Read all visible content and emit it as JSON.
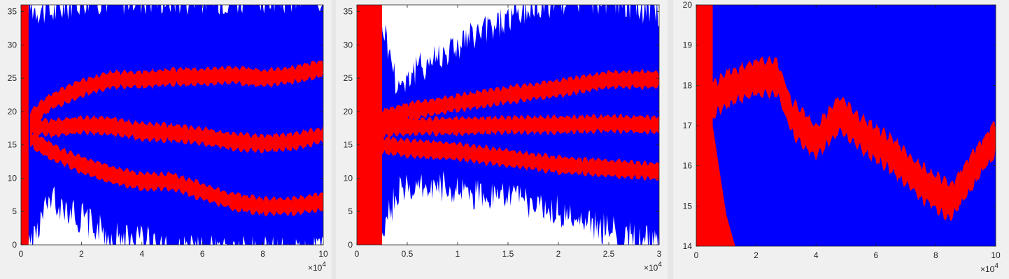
{
  "colors": {
    "band": "#0000ff",
    "trace": "#ff0000",
    "axes_bg": "#ffffff"
  },
  "chart_data": [
    {
      "type": "area",
      "title": "",
      "xlabel": "",
      "ylabel": "",
      "x_exponent_label": "×10",
      "x_exponent_power": "4",
      "xlim": [
        0,
        10
      ],
      "ylim": [
        0,
        36
      ],
      "xticks": [
        "0",
        "2",
        "4",
        "6",
        "8",
        "10"
      ],
      "yticks": [
        "0",
        "5",
        "10",
        "15",
        "20",
        "25",
        "30",
        "35"
      ],
      "grid": false,
      "legend": "none",
      "band": {
        "x": [
          0.2,
          1,
          2,
          3,
          4,
          5,
          6,
          7,
          8,
          9,
          10
        ],
        "upper": [
          35,
          34,
          36,
          36,
          36,
          36,
          36,
          36,
          36,
          36,
          36
        ],
        "lower": [
          0,
          8,
          5,
          2,
          2,
          0,
          0,
          0,
          0,
          0,
          0
        ]
      },
      "series": [
        {
          "x": [
            0.3,
            1,
            2,
            3,
            4,
            5,
            6,
            7,
            8,
            9,
            10
          ],
          "values": [
            19,
            21.5,
            23.5,
            24.8,
            24.8,
            25.2,
            25.2,
            25.5,
            25,
            25.5,
            26.5
          ]
        },
        {
          "x": [
            0.3,
            1,
            2,
            3,
            4,
            5,
            6,
            7,
            8,
            9,
            10
          ],
          "values": [
            18,
            17.5,
            18,
            17.8,
            17,
            16.8,
            16.3,
            15.5,
            15.2,
            15.5,
            16.5
          ]
        },
        {
          "x": [
            0.3,
            1,
            2,
            3,
            4,
            5,
            6,
            7,
            8,
            9,
            10
          ],
          "values": [
            16,
            14,
            12,
            10.5,
            9.5,
            9.5,
            8,
            6.5,
            5.8,
            5.8,
            6.5
          ]
        }
      ],
      "initial_transient": {
        "x_end": 0.25
      }
    },
    {
      "type": "area",
      "title": "",
      "xlabel": "",
      "ylabel": "",
      "x_exponent_label": "×10",
      "x_exponent_power": "4",
      "xlim": [
        0,
        3
      ],
      "ylim": [
        0,
        36
      ],
      "xticks": [
        "0",
        "0.5",
        "1",
        "1.5",
        "2",
        "2.5",
        "3"
      ],
      "yticks": [
        "0",
        "5",
        "10",
        "15",
        "20",
        "25",
        "30",
        "35"
      ],
      "grid": false,
      "legend": "none",
      "band": {
        "x": [
          0.2,
          0.4,
          0.75,
          1,
          1.5,
          2,
          2.5,
          3
        ],
        "upper": [
          36,
          23,
          27,
          29,
          33,
          36,
          36,
          34
        ],
        "lower": [
          0,
          9,
          10,
          9,
          8,
          6,
          3,
          1
        ]
      },
      "series": [
        {
          "x": [
            0.25,
            0.5,
            1,
            1.5,
            2,
            2.5,
            3
          ],
          "values": [
            19,
            20,
            21.3,
            22.5,
            23.5,
            24.8,
            24.8
          ]
        },
        {
          "x": [
            0.25,
            0.5,
            1,
            1.5,
            2,
            2.5,
            3
          ],
          "values": [
            17.5,
            17.8,
            17.8,
            18,
            18,
            18.2,
            18
          ]
        },
        {
          "x": [
            0.25,
            0.5,
            1,
            1.5,
            2,
            2.5,
            3
          ],
          "values": [
            15,
            14.5,
            14,
            13,
            12,
            11.5,
            11
          ]
        }
      ],
      "initial_transient": {
        "x_end": 0.25
      }
    },
    {
      "type": "area",
      "title": "",
      "xlabel": "",
      "ylabel": "",
      "x_exponent_label": "×10",
      "x_exponent_power": "4",
      "xlim": [
        0,
        10
      ],
      "ylim": [
        14,
        20
      ],
      "xticks": [
        "0",
        "2",
        "4",
        "6",
        "8",
        "10"
      ],
      "yticks": [
        "14",
        "15",
        "16",
        "17",
        "18",
        "19",
        "20"
      ],
      "grid": false,
      "legend": "none",
      "band": {
        "x": [
          0,
          10
        ],
        "upper": [
          20,
          20
        ],
        "lower": [
          14,
          14
        ]
      },
      "series": [
        {
          "x": [
            0.5,
            1,
            2,
            2.7,
            3.2,
            4,
            4.8,
            5.5,
            6.5,
            7.5,
            8.5,
            9.5,
            10
          ],
          "values": [
            17.6,
            17.9,
            18.2,
            18.2,
            17.2,
            16.6,
            17.3,
            16.8,
            16.3,
            15.6,
            15.1,
            16.2,
            16.7
          ]
        }
      ],
      "initial_transient": {
        "x_end": 0.55
      }
    }
  ]
}
